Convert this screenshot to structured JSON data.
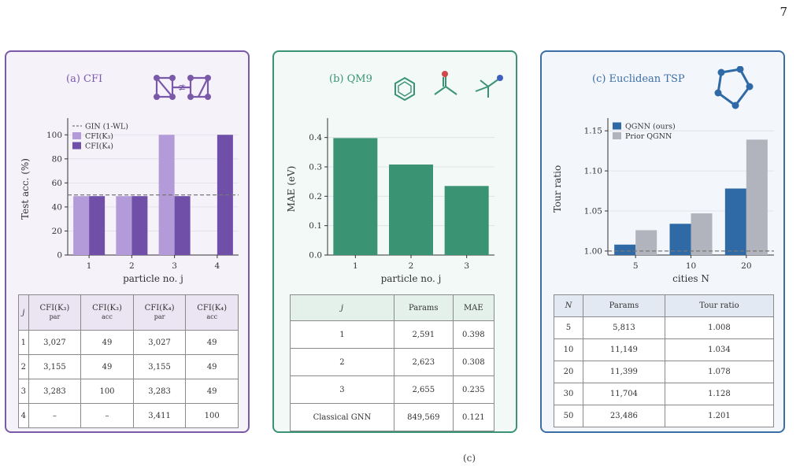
{
  "page_number": "7",
  "bottom_mark": "(c)",
  "colors": {
    "cfi_light": "#b39ad9",
    "cfi_dark": "#6f4fa8",
    "qm9": "#3a9474",
    "tsp_blue": "#2f6aa6",
    "tsp_gray": "#b1b4bc",
    "baseline": "#888888"
  },
  "panels": {
    "cfi": {
      "title": "(a) CFI",
      "icon": "cfi-graph-pair-icon",
      "not_iso_symbol": "≇",
      "table": {
        "headers": [
          {
            "main": "j",
            "sub": ""
          },
          {
            "main": "CFI(K₃)",
            "sub": "par"
          },
          {
            "main": "CFI(K₃)",
            "sub": "acc"
          },
          {
            "main": "CFI(K₄)",
            "sub": "par"
          },
          {
            "main": "CFI(K₄)",
            "sub": "acc"
          }
        ],
        "rows": [
          [
            "1",
            "3,027",
            "49",
            "3,027",
            "49"
          ],
          [
            "2",
            "3,155",
            "49",
            "3,155",
            "49"
          ],
          [
            "3",
            "3,283",
            "100",
            "3,283",
            "49"
          ],
          [
            "4",
            "–",
            "–",
            "3,411",
            "100"
          ]
        ]
      }
    },
    "qm9": {
      "title": "(b) QM9",
      "icons": [
        "benzene-molecule-icon",
        "acetone-molecule-icon",
        "tert-butyl-molecule-icon"
      ],
      "table": {
        "headers": [
          "j",
          "Params",
          "MAE"
        ],
        "rows": [
          [
            "1",
            "2,591",
            "0.398"
          ],
          [
            "2",
            "2,623",
            "0.308"
          ],
          [
            "3",
            "2,655",
            "0.235"
          ],
          [
            "Classical GNN",
            "849,569",
            "0.121"
          ]
        ]
      }
    },
    "tsp": {
      "title": "(c) Euclidean TSP",
      "icon": "tsp-tour-icon",
      "table": {
        "headers": [
          "N",
          "Params",
          "Tour ratio"
        ],
        "rows": [
          [
            "5",
            "5,813",
            "1.008"
          ],
          [
            "10",
            "11,149",
            "1.034"
          ],
          [
            "20",
            "11,399",
            "1.078"
          ],
          [
            "30",
            "11,704",
            "1.128"
          ],
          [
            "50",
            "23,486",
            "1.201"
          ]
        ]
      }
    }
  },
  "chart_data": [
    {
      "type": "bar",
      "categories": [
        "1",
        "2",
        "3",
        "4"
      ],
      "series": [
        {
          "name": "CFI(K₃)",
          "values": [
            49,
            49,
            100,
            null
          ]
        },
        {
          "name": "CFI(K₄)",
          "values": [
            49,
            49,
            49,
            100
          ]
        }
      ],
      "baseline": {
        "name": "GIN (1-WL)",
        "value": 50
      },
      "xlabel": "particle no. j",
      "ylabel": "Test acc. (%)",
      "ylim": [
        0,
        110
      ],
      "yticks": [
        0,
        20,
        40,
        60,
        80,
        100
      ],
      "legend": "top-left"
    },
    {
      "type": "bar",
      "categories": [
        "1",
        "2",
        "3"
      ],
      "values": [
        0.398,
        0.308,
        0.235
      ],
      "xlabel": "particle no. j",
      "ylabel": "MAE (eV)",
      "ylim": [
        0,
        0.45
      ],
      "yticks": [
        "0.0",
        "0.1",
        "0.2",
        "0.3",
        "0.4"
      ]
    },
    {
      "type": "bar",
      "categories": [
        "5",
        "10",
        "20"
      ],
      "series": [
        {
          "name": "QGNN (ours)",
          "values": [
            1.008,
            1.034,
            1.078
          ]
        },
        {
          "name": "Prior QGNN",
          "values": [
            1.026,
            1.047,
            1.139
          ]
        }
      ],
      "baseline": {
        "value": 1.0
      },
      "xlabel": "cities N",
      "ylabel": "Tour ratio",
      "ylim": [
        0.995,
        1.16
      ],
      "yticks": [
        "1.00",
        "1.05",
        "1.10",
        "1.15"
      ],
      "legend": "top-left"
    }
  ]
}
